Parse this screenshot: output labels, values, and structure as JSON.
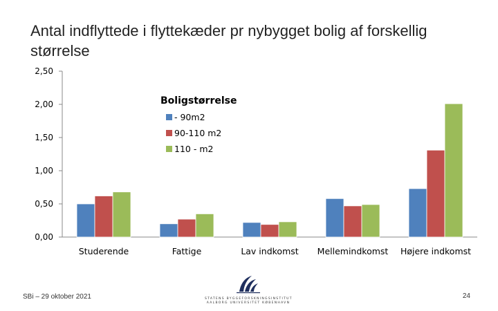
{
  "slide": {
    "title": "Antal indflyttede i flyttekæder pr nybygget bolig af forskellig størrelse",
    "footer_left": "SBi – 29 oktober 2021",
    "page_number": "24",
    "logo": {
      "line1": "STATENS BYGGEFORSKNINGSINSTITUT",
      "line2": "AALBORG UNIVERSITET KØBENHAVN"
    }
  },
  "chart_data": {
    "type": "bar",
    "categories": [
      "Studerende",
      "Fattige",
      "Lav indkomst",
      "Mellemindkomst",
      "Højere indkomst"
    ],
    "series": [
      {
        "name": "- 90m2",
        "color": "#4f81bd",
        "values": [
          0.5,
          0.2,
          0.22,
          0.58,
          0.73
        ]
      },
      {
        "name": "90-110 m2",
        "color": "#c0504d",
        "values": [
          0.62,
          0.27,
          0.19,
          0.47,
          1.31
        ]
      },
      {
        "name": "110 - m2",
        "color": "#9bbb59",
        "values": [
          0.68,
          0.35,
          0.23,
          0.49,
          2.01
        ]
      }
    ],
    "legend_title": "Boligstørrelse",
    "legend_position": "upper-center",
    "yticks": [
      "0,00",
      "0,50",
      "1,00",
      "1,50",
      "2,00",
      "2,50"
    ],
    "ylim": [
      0,
      2.5
    ],
    "grid": false
  }
}
